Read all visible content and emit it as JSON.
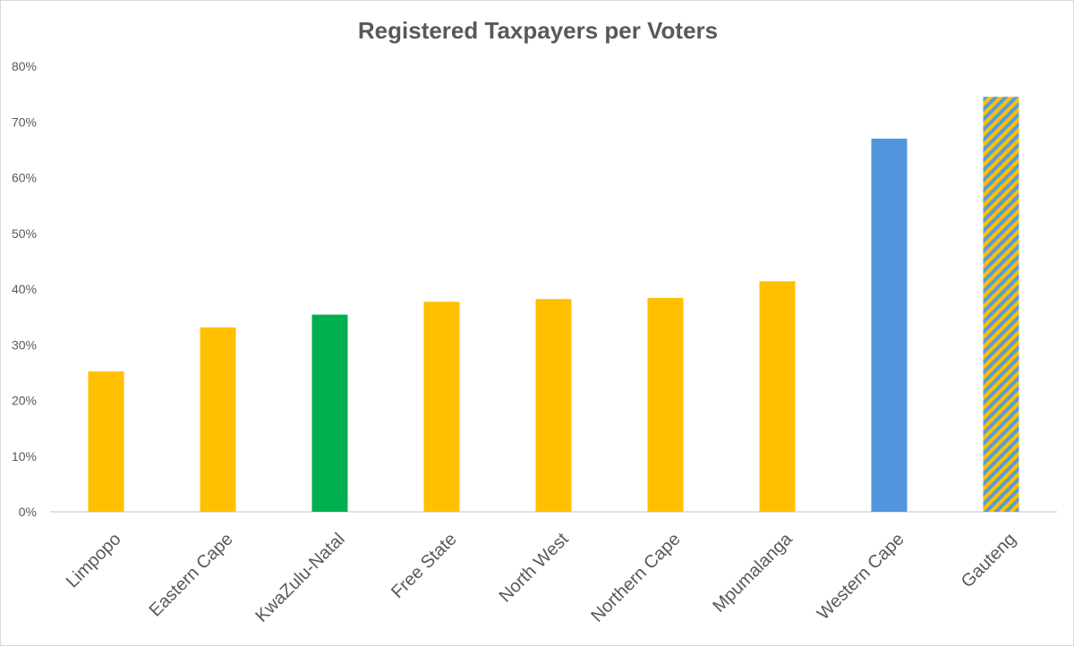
{
  "chart_data": {
    "type": "bar",
    "title": "Registered Taxpayers per Voters",
    "xlabel": "",
    "ylabel": "",
    "ylim": [
      0,
      80
    ],
    "yticks": [
      0,
      10,
      20,
      30,
      40,
      50,
      60,
      70,
      80
    ],
    "ytick_suffix": "%",
    "grid": false,
    "categories": [
      "Limpopo",
      "Eastern Cape",
      "KwaZulu-Natal",
      "Free State",
      "North West",
      "Northern Cape",
      "Mpumalanga",
      "Western Cape",
      "Gauteng"
    ],
    "values": [
      25.2,
      33.1,
      35.4,
      37.7,
      38.2,
      38.4,
      41.4,
      67.0,
      74.5
    ],
    "colors": [
      "#ffc000",
      "#ffc000",
      "#00b050",
      "#ffc000",
      "#ffc000",
      "#ffc000",
      "#ffc000",
      "#5296dd",
      "striped"
    ],
    "stripe_colors": [
      "#ffc000",
      "#5b9bd5"
    ]
  }
}
